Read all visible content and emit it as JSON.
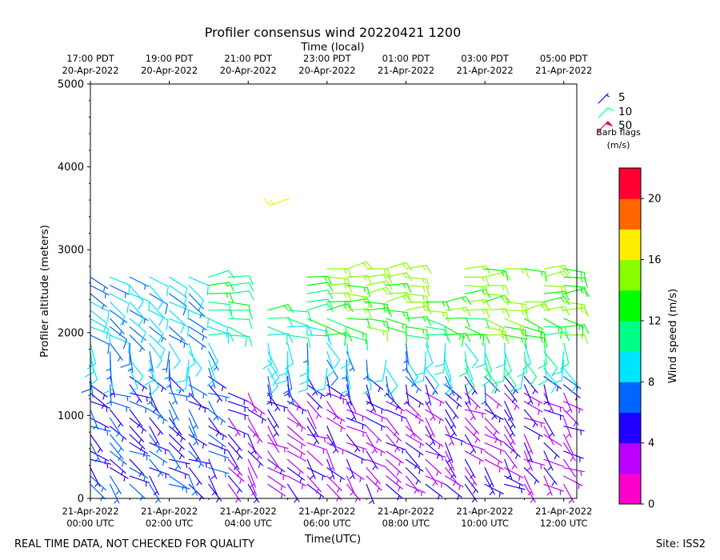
{
  "chart_data": {
    "type": "wind-barb profile",
    "title": "Profiler consensus wind 20220421 1200",
    "top_axis_label": "Time (local)",
    "top_ticks": [
      {
        "hour": 0,
        "l1": "17:00 PDT",
        "l2": "20-Apr-2022"
      },
      {
        "hour": 2,
        "l1": "19:00 PDT",
        "l2": "20-Apr-2022"
      },
      {
        "hour": 4,
        "l1": "21:00 PDT",
        "l2": "20-Apr-2022"
      },
      {
        "hour": 6,
        "l1": "23:00 PDT",
        "l2": "20-Apr-2022"
      },
      {
        "hour": 8,
        "l1": "01:00 PDT",
        "l2": "21-Apr-2022"
      },
      {
        "hour": 10,
        "l1": "03:00 PDT",
        "l2": "21-Apr-2022"
      },
      {
        "hour": 12,
        "l1": "05:00 PDT",
        "l2": "21-Apr-2022"
      }
    ],
    "bottom_ticks": [
      {
        "hour": 0,
        "l1": "21-Apr-2022",
        "l2": "00:00 UTC"
      },
      {
        "hour": 2,
        "l1": "21-Apr-2022",
        "l2": "02:00 UTC"
      },
      {
        "hour": 4,
        "l1": "21-Apr-2022",
        "l2": "04:00 UTC"
      },
      {
        "hour": 6,
        "l1": "21-Apr-2022",
        "l2": "06:00 UTC"
      },
      {
        "hour": 8,
        "l1": "21-Apr-2022",
        "l2": "08:00 UTC"
      },
      {
        "hour": 10,
        "l1": "21-Apr-2022",
        "l2": "10:00 UTC"
      },
      {
        "hour": 12,
        "l1": "21-Apr-2022",
        "l2": "12:00 UTC"
      }
    ],
    "xlabel": "Time(UTC)",
    "ylabel": "Profiler altitude (meters)",
    "xlim": [
      0,
      12.33
    ],
    "ylim": [
      0,
      5000
    ],
    "yticks": [
      0,
      1000,
      2000,
      3000,
      4000,
      5000
    ],
    "barb_legend": {
      "items": [
        {
          "label": "5",
          "speed": 5
        },
        {
          "label": "10",
          "speed": 10
        },
        {
          "label": "50",
          "speed": 50
        }
      ],
      "caption1": "Barb flags",
      "caption2": "(m/s)"
    },
    "colorbar": {
      "label": "Wind speed (m/s)",
      "min": 0,
      "max": 22,
      "ticks": [
        0,
        4,
        8,
        12,
        16,
        20
      ],
      "colors": [
        "#ff00cc",
        "#bb00ff",
        "#2200ff",
        "#0066ff",
        "#00e5ff",
        "#00ff88",
        "#00ff00",
        "#88ff00",
        "#ffee00",
        "#ff6600",
        "#ff0033"
      ]
    },
    "profile_heights": [
      170,
      270,
      370,
      470,
      570,
      670,
      770,
      870,
      970,
      1070,
      1170,
      1270,
      1370,
      1470,
      1570,
      1670,
      1770,
      1870,
      1970,
      2070,
      2170,
      2270,
      2370,
      2470,
      2570,
      2670,
      2770
    ],
    "profile_times": [
      0.0,
      0.5,
      1.0,
      1.5,
      2.0,
      2.5,
      3.0,
      3.5,
      4.0,
      4.5,
      5.0,
      5.5,
      6.0,
      6.5,
      7.0,
      7.5,
      8.0,
      8.5,
      9.0,
      9.5,
      10.0,
      10.5,
      11.0,
      11.5,
      12.0
    ],
    "upper_barb": {
      "time": 5.05,
      "height": 3620,
      "speed": 16,
      "direction": 250
    }
  },
  "footer_left": "REAL TIME DATA, NOT CHECKED FOR QUALITY",
  "footer_right": "Site: ISS2"
}
